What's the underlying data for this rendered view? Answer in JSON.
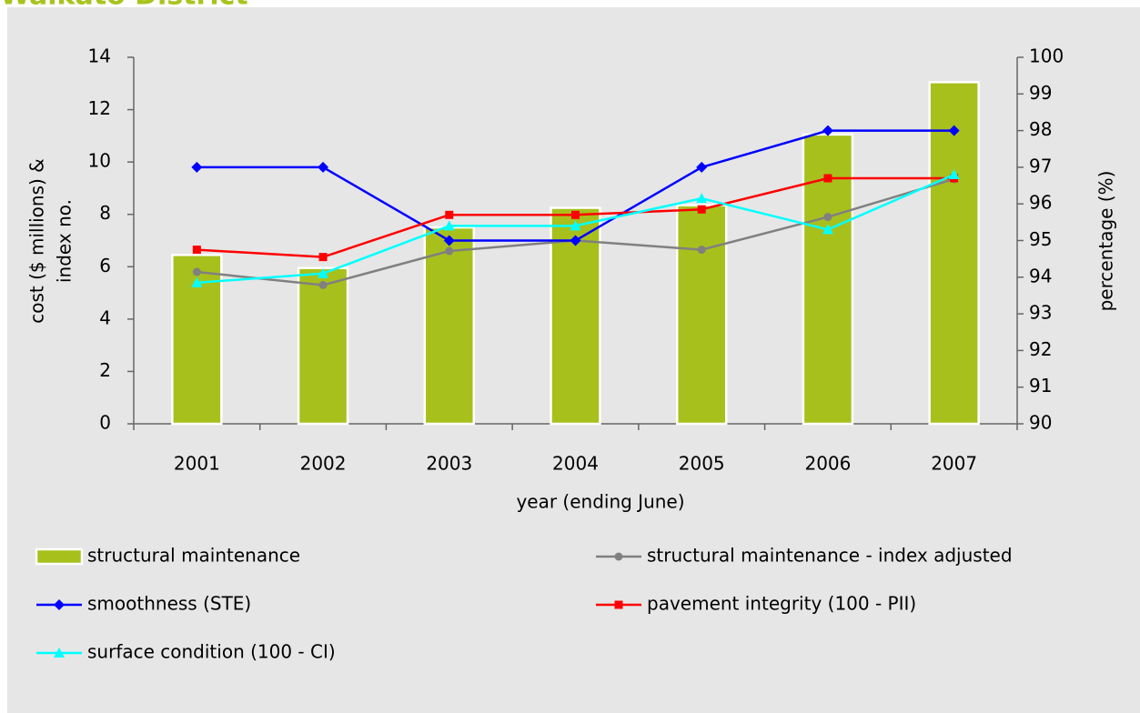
{
  "chart_data": {
    "type": "bar",
    "title": "Waikato District",
    "x_label": "year (ending June)",
    "y_label": [
      "cost ($ millions) &",
      "index no."
    ],
    "y2_label": "percentage (%)",
    "categories": [
      "2001",
      "2002",
      "2003",
      "2004",
      "2005",
      "2006",
      "2007"
    ],
    "ylim": [
      0,
      14
    ],
    "yticks": [
      0,
      2,
      4,
      6,
      8,
      10,
      12,
      14
    ],
    "y2lim": [
      90,
      100
    ],
    "y2ticks": [
      90,
      91,
      92,
      93,
      94,
      95,
      96,
      97,
      98,
      99,
      100
    ],
    "series": [
      {
        "name": "structural maintenance",
        "type": "bar",
        "color": "#a8c01c",
        "axis": "y",
        "values": [
          6.45,
          5.95,
          7.5,
          8.25,
          8.35,
          11.05,
          13.05
        ]
      },
      {
        "name": "structural maintenance - index adjusted",
        "type": "line",
        "marker": "circle",
        "color": "#808080",
        "axis": "y",
        "values": [
          5.8,
          5.3,
          6.6,
          7.0,
          6.65,
          7.9,
          9.35
        ]
      },
      {
        "name": "smoothness (STE)",
        "type": "line",
        "marker": "diamond",
        "color": "#0000ff",
        "axis": "y2",
        "values": [
          97,
          97,
          95,
          95,
          97,
          98,
          98
        ]
      },
      {
        "name": "pavement integrity (100 - PII)",
        "type": "line",
        "marker": "square",
        "color": "#ff0000",
        "axis": "y2",
        "values": [
          94.75,
          94.55,
          95.7,
          95.7,
          95.85,
          96.7,
          96.7
        ]
      },
      {
        "name": "surface condition (100 - CI)",
        "type": "line",
        "marker": "triangle",
        "color": "#00ffff",
        "axis": "y2",
        "values": [
          93.85,
          94.1,
          95.4,
          95.4,
          96.15,
          95.3,
          96.8
        ]
      }
    ]
  }
}
